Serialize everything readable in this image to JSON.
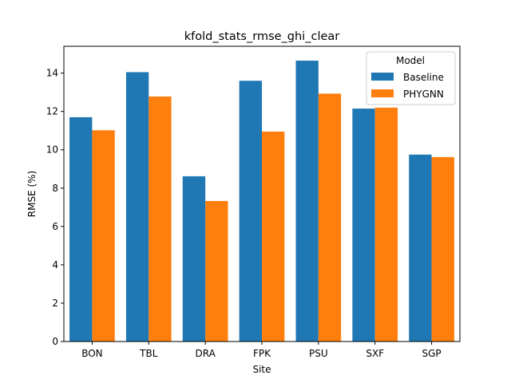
{
  "chart_data": {
    "type": "bar",
    "title": "kfold_stats_rmse_ghi_clear",
    "xlabel": "Site",
    "ylabel": "RMSE (%)",
    "categories": [
      "BON",
      "TBL",
      "DRA",
      "FPK",
      "PSU",
      "SXF",
      "SGP"
    ],
    "ylim": [
      0,
      15.4
    ],
    "yticks": [
      0,
      2,
      4,
      6,
      8,
      10,
      12,
      14
    ],
    "series": [
      {
        "name": "Baseline",
        "color": "#1f77b4",
        "values": [
          11.7,
          14.05,
          8.62,
          13.6,
          14.65,
          12.15,
          9.75
        ]
      },
      {
        "name": "PHYGNN",
        "color": "#ff7f0e",
        "values": [
          11.02,
          12.78,
          7.33,
          10.95,
          12.93,
          12.2,
          9.62
        ]
      }
    ],
    "legend": {
      "title": "Model",
      "placement": "top-right"
    },
    "grid": false
  }
}
